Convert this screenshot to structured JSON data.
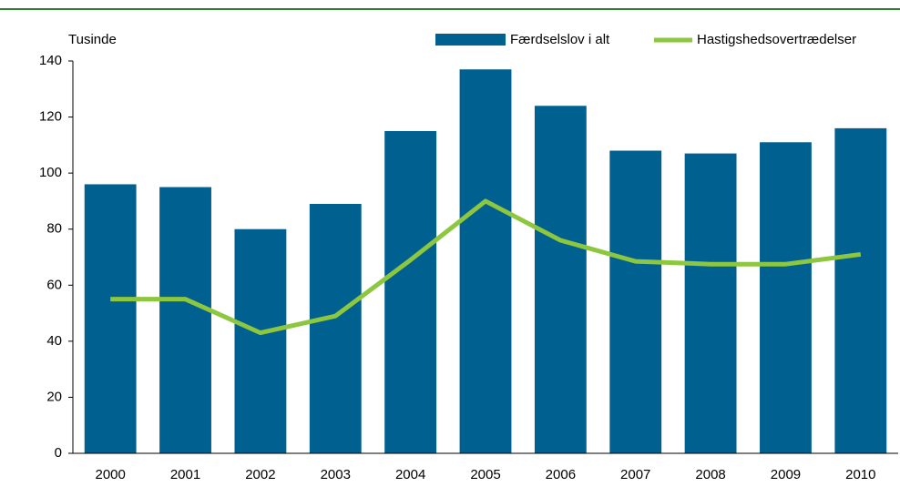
{
  "chart_data": {
    "type": "bar-line",
    "y_label": "Tusinde",
    "categories": [
      "2000",
      "2001",
      "2002",
      "2003",
      "2004",
      "2005",
      "2006",
      "2007",
      "2008",
      "2009",
      "2010"
    ],
    "series": [
      {
        "name": "Færdselslov i alt",
        "type": "bar",
        "color": "#00608f",
        "values": [
          96,
          95,
          80,
          89,
          115,
          137,
          124,
          108,
          107,
          111,
          116
        ]
      },
      {
        "name": "Hastigshedsovertrædelser",
        "type": "line",
        "color": "#8dc63f",
        "values": [
          55,
          55,
          43,
          49,
          69,
          90,
          76,
          68.5,
          67.5,
          67.5,
          71
        ]
      }
    ],
    "ylim": [
      0,
      140
    ],
    "yticks": [
      0,
      20,
      40,
      60,
      80,
      100,
      120,
      140
    ],
    "grid": false
  }
}
